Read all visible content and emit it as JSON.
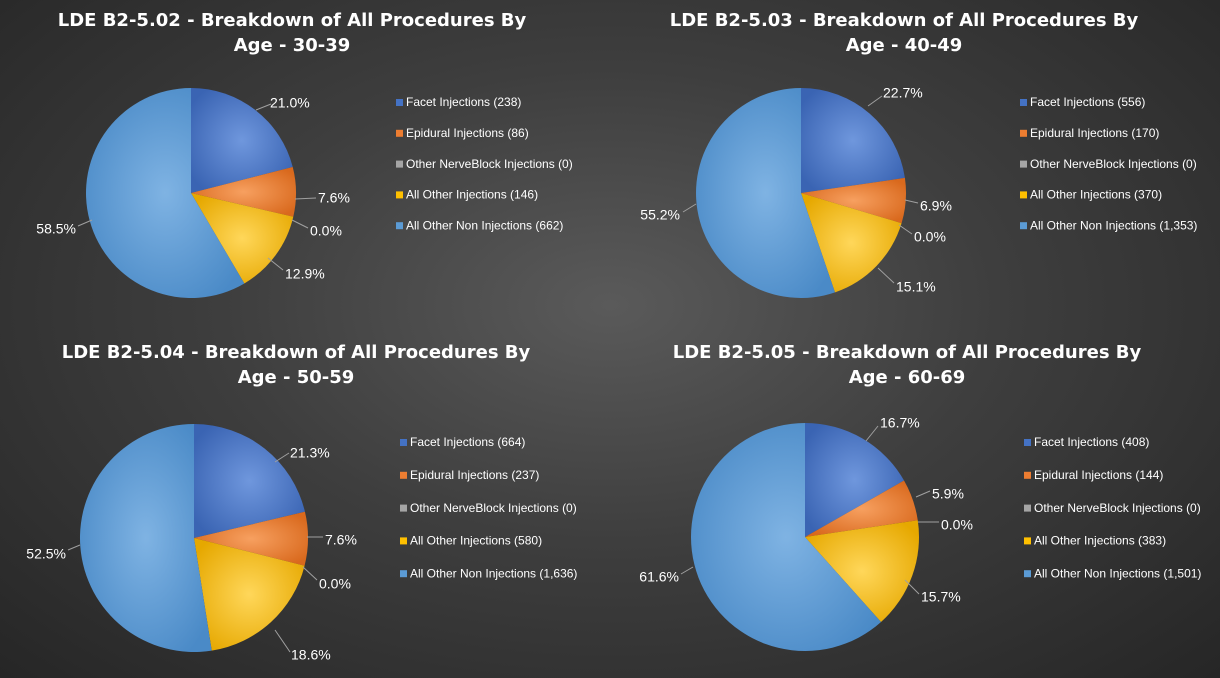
{
  "chart_data": [
    {
      "type": "pie",
      "title_line1": "LDE B2-5.02 - Breakdown of All Procedures By",
      "title_line2": "Age - 30-39",
      "legend": [
        "Facet Injections (238)",
        "Epidural Injections (86)",
        "Other NerveBlock Injections (0)",
        "All Other Injections (146)",
        "All Other Non Injections (662)"
      ],
      "values": [
        238,
        86,
        0,
        146,
        662
      ],
      "percent_labels": [
        "21.0%",
        "7.6%",
        "0.0%",
        "12.9%",
        "58.5%"
      ]
    },
    {
      "type": "pie",
      "title_line1": "LDE B2-5.03 - Breakdown of All Procedures By",
      "title_line2": "Age - 40-49",
      "legend": [
        "Facet Injections (556)",
        "Epidural Injections (170)",
        "Other NerveBlock Injections (0)",
        "All Other Injections (370)",
        "All Other Non Injections (1,353)"
      ],
      "values": [
        556,
        170,
        0,
        370,
        1353
      ],
      "percent_labels": [
        "22.7%",
        "6.9%",
        "0.0%",
        "15.1%",
        "55.2%"
      ]
    },
    {
      "type": "pie",
      "title_line1": "LDE B2-5.04 - Breakdown of All Procedures By",
      "title_line2": "Age - 50-59",
      "legend": [
        "Facet Injections (664)",
        "Epidural Injections (237)",
        "Other NerveBlock Injections (0)",
        "All Other Injections (580)",
        "All Other Non Injections (1,636)"
      ],
      "values": [
        664,
        237,
        0,
        580,
        1636
      ],
      "percent_labels": [
        "21.3%",
        "7.6%",
        "0.0%",
        "18.6%",
        "52.5%"
      ]
    },
    {
      "type": "pie",
      "title_line1": "LDE B2-5.05 - Breakdown of All Procedures By",
      "title_line2": "Age - 60-69",
      "legend": [
        "Facet Injections (408)",
        "Epidural Injections (144)",
        "Other NerveBlock Injections (0)",
        "All Other Injections (383)",
        "All Other Non Injections (1,501)"
      ],
      "values": [
        408,
        144,
        0,
        383,
        1501
      ],
      "percent_labels": [
        "16.7%",
        "5.9%",
        "0.0%",
        "15.7%",
        "61.6%"
      ]
    }
  ],
  "series_colors": [
    "#4472C4",
    "#ED7D31",
    "#A5A5A5",
    "#FFC000",
    "#5B9BD5"
  ]
}
